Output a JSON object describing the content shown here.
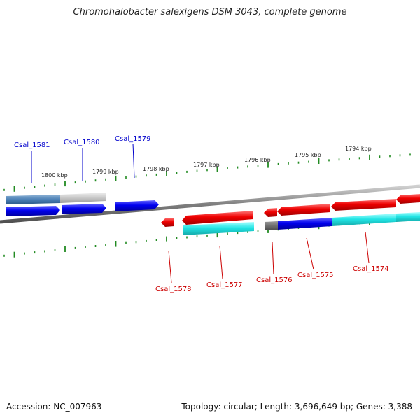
{
  "title": "Chromohalobacter salexigens DSM 3043, complete genome",
  "footer": {
    "accession": "Accession: NC_007963",
    "summary": "Topology: circular; Length: 3,696,649 bp; Genes: 3,388"
  },
  "scale_labels": [
    "1800 kbp",
    "1799 kbp",
    "1798 kbp",
    "1797 kbp",
    "1796 kbp",
    "1795 kbp",
    "1794 kbp"
  ],
  "genes": [
    {
      "name": "Csal_1581",
      "strand": "forward"
    },
    {
      "name": "Csal_1580",
      "strand": "forward"
    },
    {
      "name": "Csal_1579",
      "strand": "forward"
    },
    {
      "name": "Csal_1578",
      "strand": "reverse"
    },
    {
      "name": "Csal_1577",
      "strand": "reverse"
    },
    {
      "name": "Csal_1576",
      "strand": "reverse"
    },
    {
      "name": "Csal_1575",
      "strand": "reverse"
    },
    {
      "name": "Csal_1574",
      "strand": "reverse"
    }
  ],
  "colors": {
    "forward_gene": "#0000ee",
    "reverse_gene": "#ee0000",
    "forward_cds": "#4a7fb5",
    "reverse_cds": "#22e5e5",
    "backbone": "#808080",
    "tick": "#228b22"
  }
}
